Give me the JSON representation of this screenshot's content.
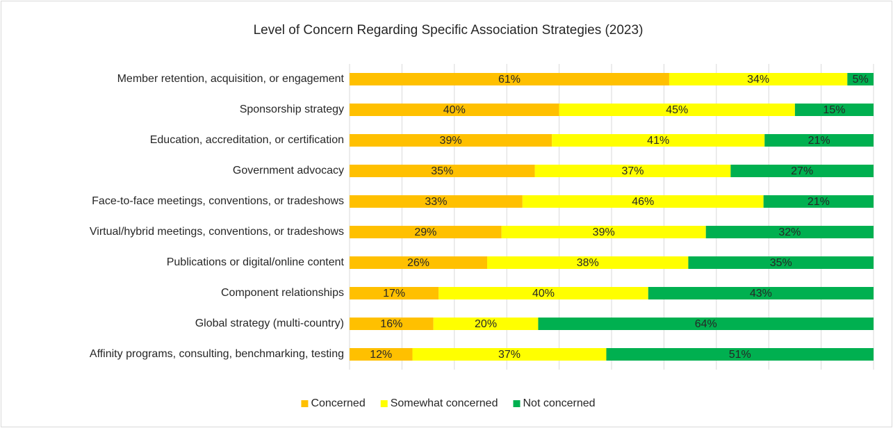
{
  "chart_data": {
    "type": "bar",
    "orientation": "horizontal",
    "stacking": "percent",
    "title": "Level of Concern Regarding Specific Association Strategies (2023)",
    "categories": [
      "Member retention, acquisition, or engagement",
      "Sponsorship strategy",
      "Education, accreditation, or certification",
      "Government advocacy",
      "Face-to-face meetings, conventions, or tradeshows",
      "Virtual/hybrid meetings, conventions, or tradeshows",
      "Publications or digital/online content",
      "Component relationships",
      "Global strategy (multi-country)",
      "Affinity programs, consulting, benchmarking, testing"
    ],
    "series": [
      {
        "name": "Concerned",
        "color": "#ffc000",
        "label_color": "#262626",
        "values": [
          61,
          40,
          39,
          35,
          33,
          29,
          26,
          17,
          16,
          12
        ],
        "value_labels": [
          "61%",
          "40%",
          "39%",
          "35%",
          "33%",
          "29%",
          "26%",
          "17%",
          "16%",
          "12%"
        ]
      },
      {
        "name": "Somewhat concerned",
        "color": "#ffff00",
        "label_color": "#262626",
        "values": [
          34,
          45,
          41,
          37,
          46,
          39,
          38,
          40,
          20,
          37
        ],
        "value_labels": [
          "34%",
          "45%",
          "41%",
          "37%",
          "46%",
          "39%",
          "38%",
          "40%",
          "20%",
          "37%"
        ]
      },
      {
        "name": "Not concerned",
        "color": "#00b050",
        "label_color": "#ffffff",
        "values": [
          5,
          15,
          21,
          27,
          21,
          32,
          35,
          43,
          64,
          51
        ],
        "value_labels": [
          "5%",
          "15%",
          "21%",
          "27%",
          "21%",
          "32%",
          "35%",
          "43%",
          "64%",
          "51%"
        ]
      }
    ],
    "xlim": [
      0,
      100
    ],
    "xticks": [
      0,
      10,
      20,
      30,
      40,
      50,
      60,
      70,
      80,
      90,
      100
    ],
    "grid": true,
    "legend": "bottom"
  }
}
